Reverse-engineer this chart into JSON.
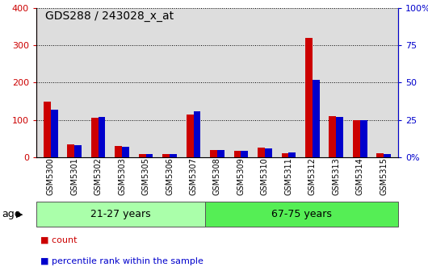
{
  "title": "GDS288 / 243028_x_at",
  "categories": [
    "GSM5300",
    "GSM5301",
    "GSM5302",
    "GSM5303",
    "GSM5305",
    "GSM5306",
    "GSM5307",
    "GSM5308",
    "GSM5309",
    "GSM5310",
    "GSM5311",
    "GSM5312",
    "GSM5313",
    "GSM5314",
    "GSM5315"
  ],
  "count_values": [
    150,
    35,
    105,
    30,
    8,
    8,
    115,
    20,
    18,
    25,
    10,
    320,
    110,
    100,
    10
  ],
  "percentile_values": [
    32,
    8,
    27,
    7,
    2,
    2,
    31,
    5,
    4,
    6,
    3,
    52,
    27,
    25,
    2
  ],
  "count_color": "#cc0000",
  "percentile_color": "#0000cc",
  "ylim_left": [
    0,
    400
  ],
  "ylim_right": [
    0,
    100
  ],
  "yticks_left": [
    0,
    100,
    200,
    300,
    400
  ],
  "yticks_right": [
    0,
    25,
    50,
    75,
    100
  ],
  "ytick_labels_left": [
    "0",
    "100",
    "200",
    "300",
    "400"
  ],
  "ytick_labels_right": [
    "0%",
    "25",
    "50",
    "75",
    "100%"
  ],
  "group1_label": "21-27 years",
  "group2_label": "67-75 years",
  "group1_count": 7,
  "group2_count": 8,
  "group_color_light": "#aaffaa",
  "group_color_medium": "#55ee55",
  "age_label": "age",
  "legend_count": "count",
  "legend_percentile": "percentile rank within the sample",
  "bar_width": 0.3,
  "background_color": "#ffffff",
  "plot_bg_color": "#dddddd"
}
